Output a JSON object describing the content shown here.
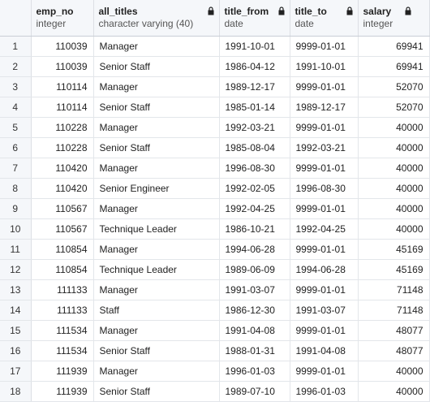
{
  "columns": [
    {
      "name": "emp_no",
      "type": "integer",
      "locked": false
    },
    {
      "name": "all_titles",
      "type": "character varying (40)",
      "locked": true
    },
    {
      "name": "title_from",
      "type": "date",
      "locked": true
    },
    {
      "name": "title_to",
      "type": "date",
      "locked": true
    },
    {
      "name": "salary",
      "type": "integer",
      "locked": true
    }
  ],
  "rows": [
    {
      "n": "1",
      "emp_no": "110039",
      "title": "Manager",
      "from": "1991-10-01",
      "to": "9999-01-01",
      "salary": "69941"
    },
    {
      "n": "2",
      "emp_no": "110039",
      "title": "Senior Staff",
      "from": "1986-04-12",
      "to": "1991-10-01",
      "salary": "69941"
    },
    {
      "n": "3",
      "emp_no": "110114",
      "title": "Manager",
      "from": "1989-12-17",
      "to": "9999-01-01",
      "salary": "52070"
    },
    {
      "n": "4",
      "emp_no": "110114",
      "title": "Senior Staff",
      "from": "1985-01-14",
      "to": "1989-12-17",
      "salary": "52070"
    },
    {
      "n": "5",
      "emp_no": "110228",
      "title": "Manager",
      "from": "1992-03-21",
      "to": "9999-01-01",
      "salary": "40000"
    },
    {
      "n": "6",
      "emp_no": "110228",
      "title": "Senior Staff",
      "from": "1985-08-04",
      "to": "1992-03-21",
      "salary": "40000"
    },
    {
      "n": "7",
      "emp_no": "110420",
      "title": "Manager",
      "from": "1996-08-30",
      "to": "9999-01-01",
      "salary": "40000"
    },
    {
      "n": "8",
      "emp_no": "110420",
      "title": "Senior Engineer",
      "from": "1992-02-05",
      "to": "1996-08-30",
      "salary": "40000"
    },
    {
      "n": "9",
      "emp_no": "110567",
      "title": "Manager",
      "from": "1992-04-25",
      "to": "9999-01-01",
      "salary": "40000"
    },
    {
      "n": "10",
      "emp_no": "110567",
      "title": "Technique Leader",
      "from": "1986-10-21",
      "to": "1992-04-25",
      "salary": "40000"
    },
    {
      "n": "11",
      "emp_no": "110854",
      "title": "Manager",
      "from": "1994-06-28",
      "to": "9999-01-01",
      "salary": "45169"
    },
    {
      "n": "12",
      "emp_no": "110854",
      "title": "Technique Leader",
      "from": "1989-06-09",
      "to": "1994-06-28",
      "salary": "45169"
    },
    {
      "n": "13",
      "emp_no": "111133",
      "title": "Manager",
      "from": "1991-03-07",
      "to": "9999-01-01",
      "salary": "71148"
    },
    {
      "n": "14",
      "emp_no": "111133",
      "title": "Staff",
      "from": "1986-12-30",
      "to": "1991-03-07",
      "salary": "71148"
    },
    {
      "n": "15",
      "emp_no": "111534",
      "title": "Manager",
      "from": "1991-04-08",
      "to": "9999-01-01",
      "salary": "48077"
    },
    {
      "n": "16",
      "emp_no": "111534",
      "title": "Senior Staff",
      "from": "1988-01-31",
      "to": "1991-04-08",
      "salary": "48077"
    },
    {
      "n": "17",
      "emp_no": "111939",
      "title": "Manager",
      "from": "1996-01-03",
      "to": "9999-01-01",
      "salary": "40000"
    },
    {
      "n": "18",
      "emp_no": "111939",
      "title": "Senior Staff",
      "from": "1989-07-10",
      "to": "1996-01-03",
      "salary": "40000"
    }
  ],
  "icons": {
    "locked": "lock-icon"
  },
  "colors": {
    "header_bg": "#f5f7fa",
    "grid_line": "#e3e6ea"
  }
}
